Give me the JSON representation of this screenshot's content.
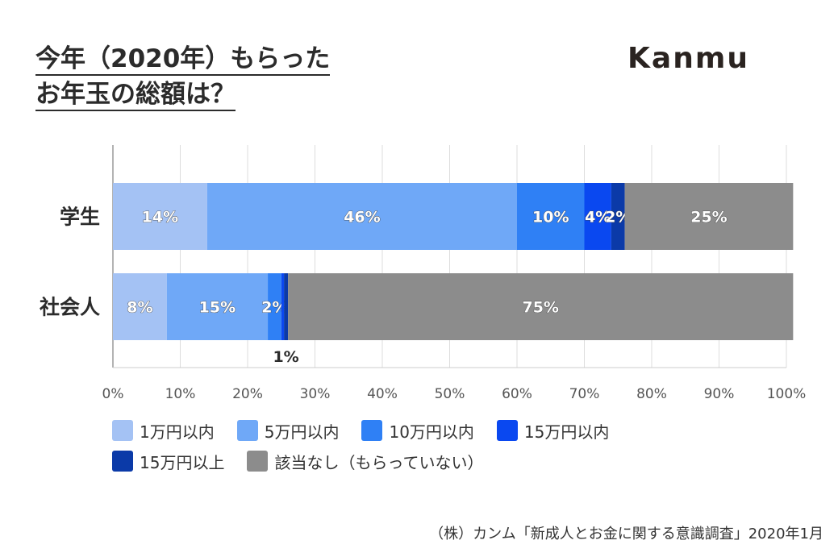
{
  "title": {
    "line1": "今年（2020年）もらった",
    "line2": "お年玉の総額は？"
  },
  "logo": "Kanmu",
  "source": "（株）カンム「新成人とお金に関する意識調査」2020年1月",
  "chart_data": {
    "type": "bar",
    "orientation": "horizontal",
    "stacked": true,
    "categories": [
      "学生",
      "社会人"
    ],
    "x_ticks": [
      "0%",
      "10%",
      "20%",
      "30%",
      "40%",
      "50%",
      "60%",
      "70%",
      "80%",
      "90%",
      "100%"
    ],
    "xlim": [
      0,
      100
    ],
    "grid": true,
    "legend_position": "bottom",
    "series": [
      {
        "name": "1万円以内",
        "values": [
          14,
          8
        ],
        "labels": [
          "14%",
          "8%"
        ],
        "color": "#a4c2f4"
      },
      {
        "name": "5万円以内",
        "values": [
          46,
          15
        ],
        "labels": [
          "46%",
          "15%"
        ],
        "color": "#6fa8f7"
      },
      {
        "name": "10万円以内",
        "values": [
          10,
          2
        ],
        "labels": [
          "10%",
          "2%"
        ],
        "color": "#2f80f5"
      },
      {
        "name": "15万円以内",
        "values": [
          4,
          0.4
        ],
        "labels": [
          "4%",
          ""
        ],
        "color": "#0a48f0"
      },
      {
        "name": "15万円以上",
        "values": [
          2,
          0.6
        ],
        "labels": [
          "2%",
          "1%"
        ],
        "color": "#0b3aa8"
      },
      {
        "name": "該当なし（もらっていない）",
        "values": [
          25,
          75
        ],
        "labels": [
          "25%",
          "75%"
        ],
        "color": "#8c8c8c"
      }
    ]
  }
}
